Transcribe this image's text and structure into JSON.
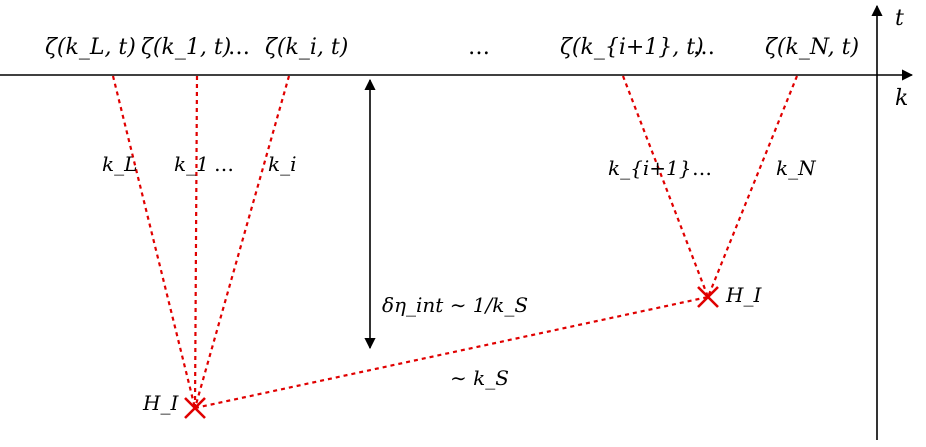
{
  "axes": {
    "horizontal_label": "k",
    "vertical_label": "t"
  },
  "top_labels": [
    "ζ(k_L, t)",
    "ζ(k_1, t)",
    "…",
    "ζ(k_i, t)",
    "…",
    "ζ(k_{i+1}, t)",
    "…",
    "ζ(k_N, t)"
  ],
  "line_labels": [
    "k_L",
    "k_1",
    "…",
    "k_i",
    "k_{i+1}",
    "…",
    "k_N"
  ],
  "vertex_labels": [
    "H_I",
    "H_I"
  ],
  "interval_label": "δη_int ∼ 1/k_S",
  "connection_label": "∼ k_S",
  "colors": {
    "propagator": "#e00000",
    "vertex_marker": "#e00000",
    "axes": "#000000"
  }
}
